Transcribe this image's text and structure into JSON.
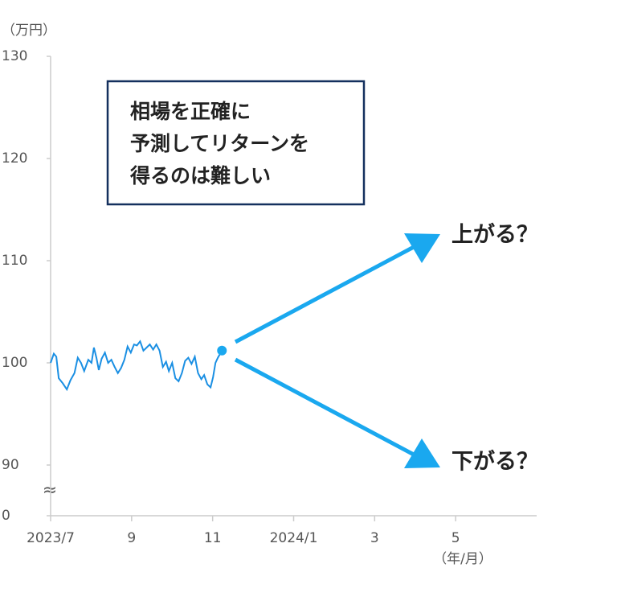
{
  "chart_data": {
    "type": "line",
    "y_unit_label": "（万円）",
    "x_unit_label": "（年/月）",
    "annotation_box": [
      "相場を正確に",
      "予測してリターンを",
      "得るのは難しい"
    ],
    "arrow_labels": [
      "上がる？",
      "下がる？"
    ],
    "axis_break": [
      0,
      90
    ],
    "axis_break_symbol": "≈",
    "x": [
      0,
      0.08,
      0.14,
      0.2,
      0.3,
      0.4,
      0.49,
      0.59,
      0.67,
      0.75,
      0.83,
      0.93,
      1.01,
      1.07,
      1.13,
      1.19,
      1.26,
      1.34,
      1.42,
      1.5,
      1.58,
      1.66,
      1.74,
      1.82,
      1.9,
      1.98,
      2.06,
      2.13,
      2.21,
      2.29,
      2.37,
      2.45,
      2.53,
      2.61,
      2.69,
      2.77,
      2.85,
      2.92,
      3.0,
      3.08,
      3.16,
      3.24,
      3.32,
      3.4,
      3.48,
      3.56,
      3.64,
      3.72,
      3.79,
      3.87,
      3.95,
      4.01,
      4.07,
      4.13,
      4.23
    ],
    "series": [
      {
        "color": "#1a8fe3",
        "values": [
          100.0,
          100.9,
          100.6,
          98.5,
          98.0,
          97.4,
          98.3,
          99.0,
          100.5,
          100.0,
          99.2,
          100.3,
          100.0,
          101.5,
          100.5,
          99.3,
          100.4,
          101.0,
          100.0,
          100.3,
          99.6,
          99.0,
          99.5,
          100.3,
          101.6,
          101.0,
          101.8,
          101.7,
          102.1,
          101.2,
          101.5,
          101.8,
          101.3,
          101.8,
          101.2,
          99.6,
          100.1,
          99.2,
          100.0,
          98.5,
          98.2,
          99.0,
          100.2,
          100.5,
          99.9,
          100.6,
          99.0,
          98.4,
          98.8,
          97.9,
          97.6,
          98.6,
          100.0,
          100.5,
          101.2
        ]
      }
    ],
    "xlim": [
      0,
      12
    ],
    "xticks": [
      {
        "value": 0,
        "label": "2023/7"
      },
      {
        "value": 2,
        "label": "9"
      },
      {
        "value": 4,
        "label": "11"
      },
      {
        "value": 6,
        "label": "2024/1"
      },
      {
        "value": 8,
        "label": "3"
      },
      {
        "value": 10,
        "label": "5"
      }
    ],
    "ylim": [
      0,
      130
    ],
    "yticks": [
      0,
      90,
      100,
      110,
      120,
      130
    ],
    "grid": false
  }
}
